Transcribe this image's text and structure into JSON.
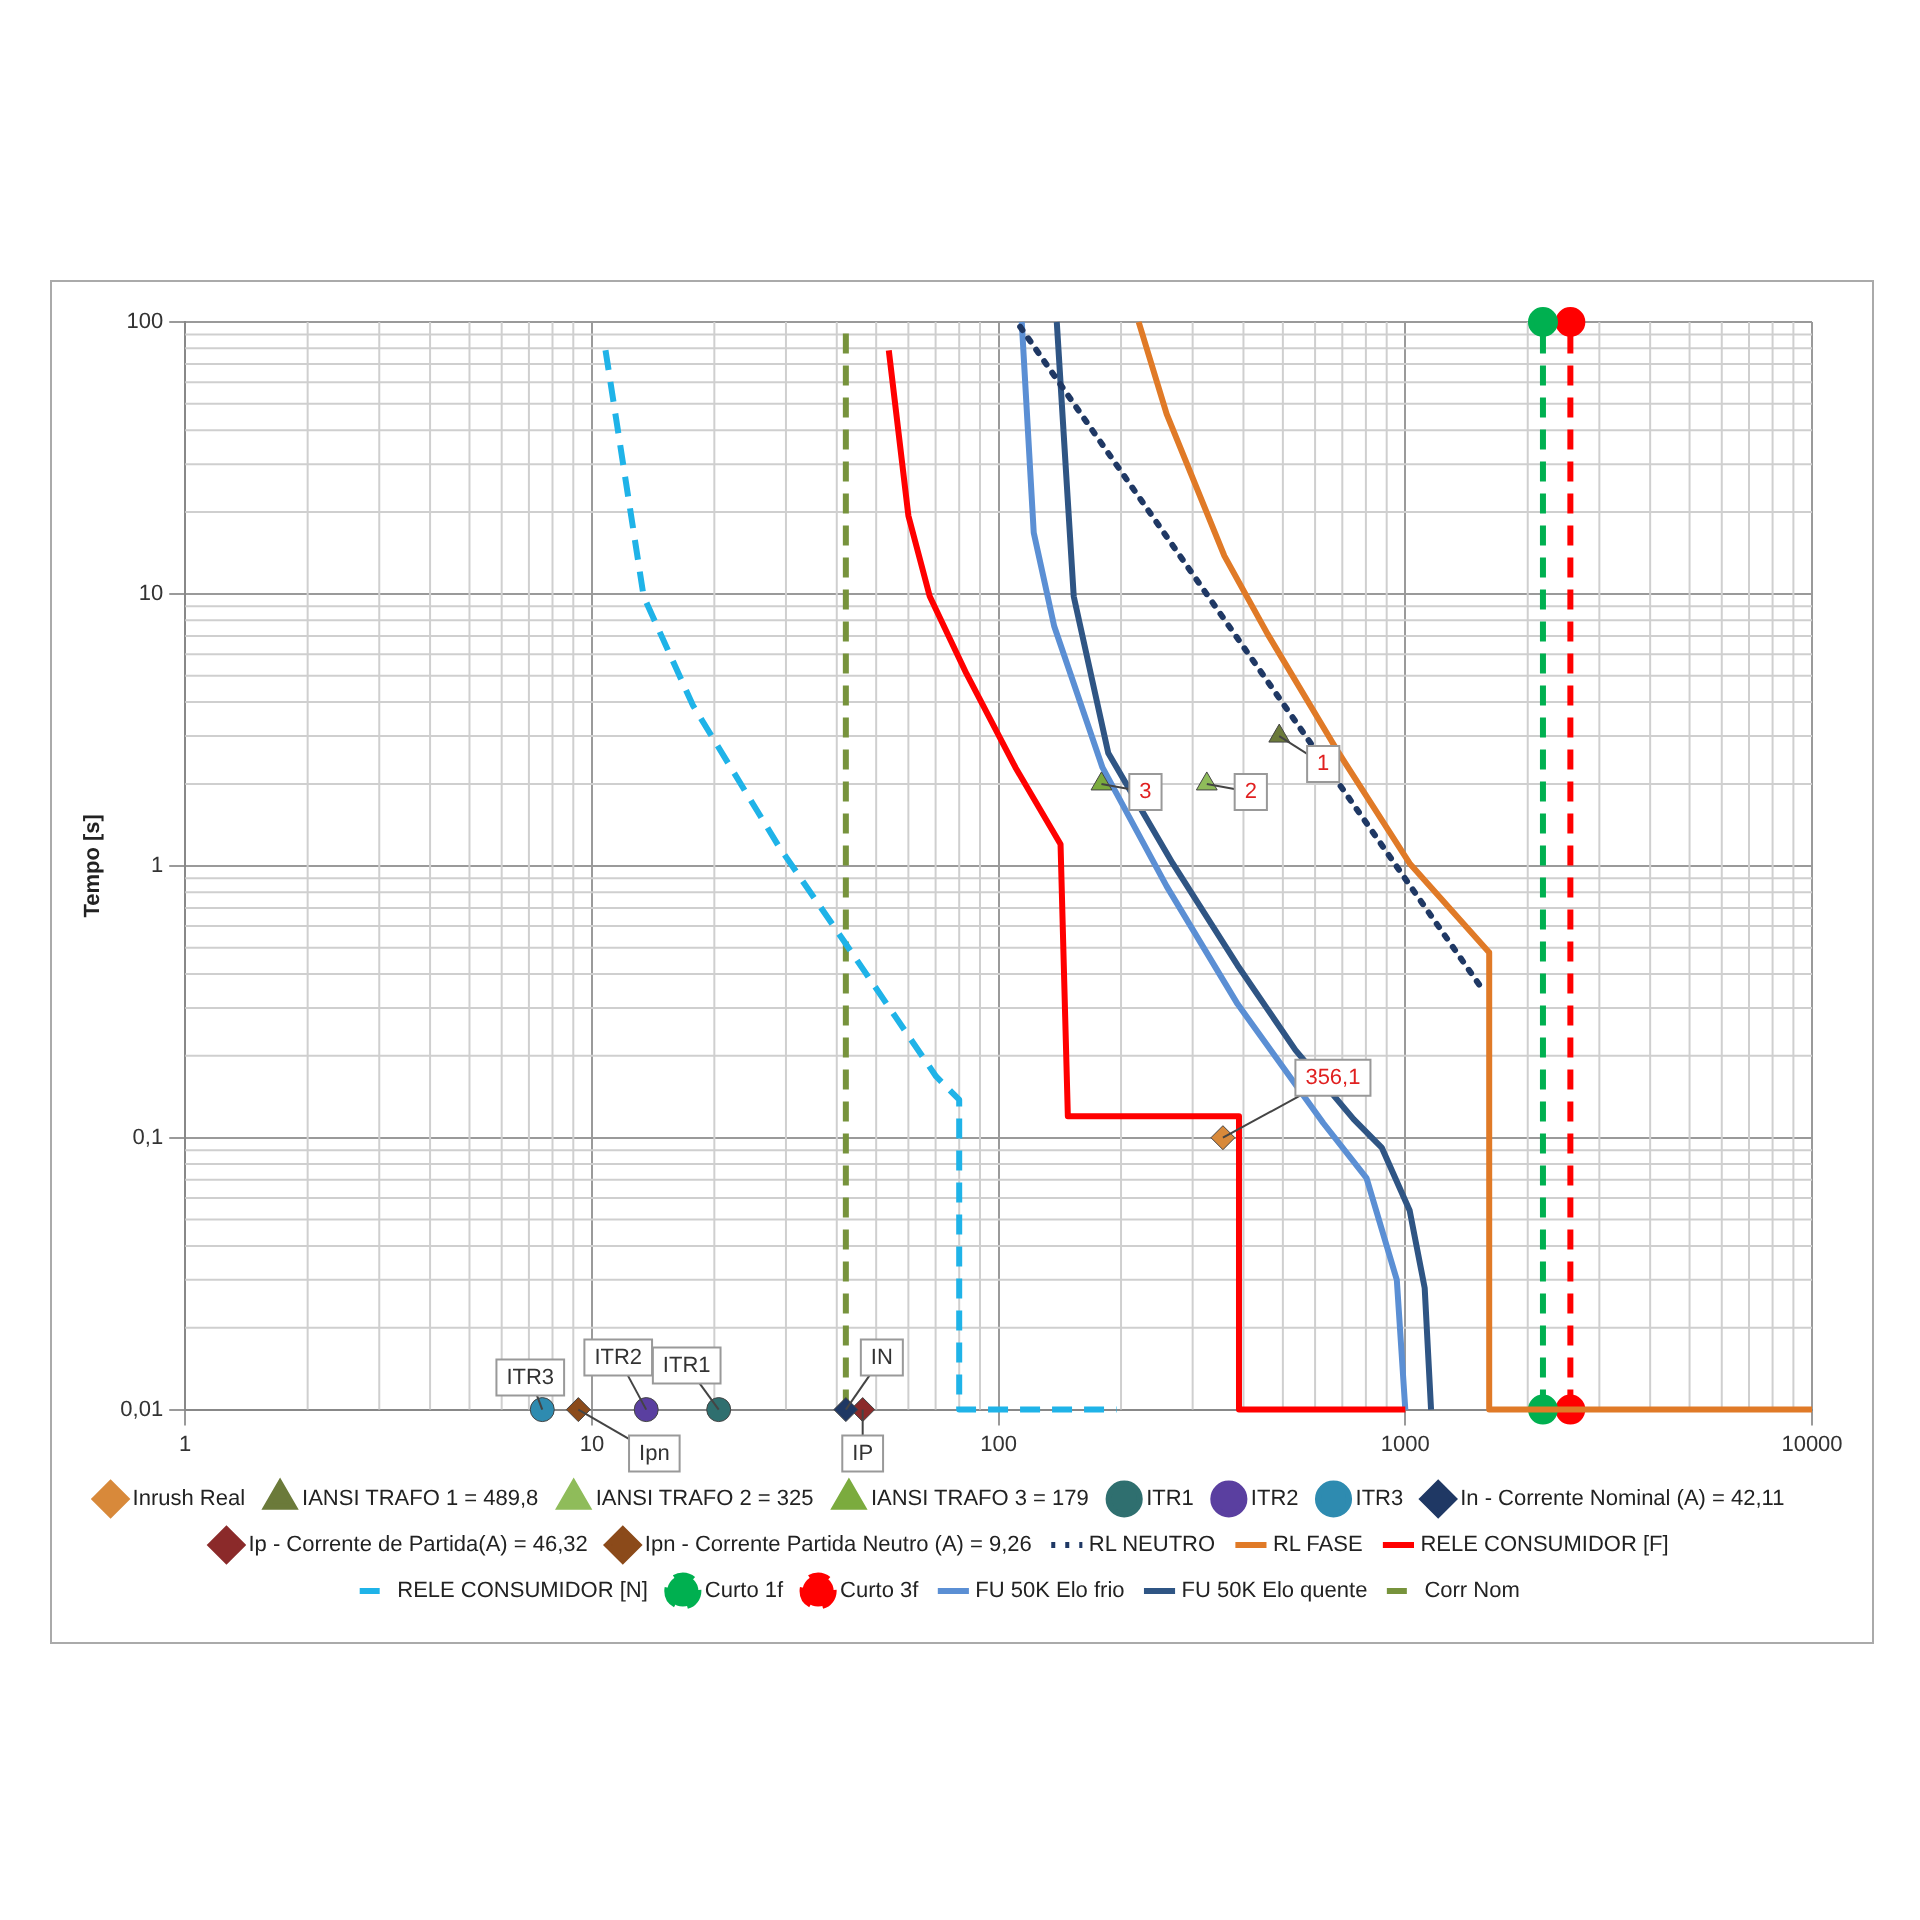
{
  "chart_data": {
    "type": "line",
    "ylabel": "Tempo [s]",
    "log": "xy",
    "grid": true,
    "legend": "bottom",
    "xlim": [
      1,
      10000
    ],
    "xticks": [
      1,
      10,
      100,
      1000,
      10000
    ],
    "ylim": [
      0.01,
      100
    ],
    "yticks": [
      {
        "value": 0.01,
        "label": "0,01"
      },
      {
        "value": 0.1,
        "label": "0,1"
      },
      1,
      10,
      100
    ],
    "series": [
      {
        "name": "RL NEUTRO",
        "type": "line",
        "color": "#1f3864",
        "line_style": "dotted",
        "marker": "none",
        "x": [
          113,
          1550
        ],
        "values": [
          96,
          0.35
        ]
      },
      {
        "name": "RL FASE",
        "type": "line",
        "color": "#e07a27",
        "line_style": "solid",
        "marker": "none",
        "x": [
          221,
          259,
          359,
          459,
          686,
          1025,
          1608,
          1608,
          10000
        ],
        "values": [
          100,
          45.8,
          13.8,
          7.1,
          2.6,
          1.02,
          0.48,
          0.01,
          0.01
        ]
      },
      {
        "name": "RELE CONSUMIDOR [F]",
        "type": "line",
        "color": "#ff0000",
        "line_style": "solid",
        "marker": "none",
        "x": [
          53.7,
          60,
          67.7,
          83.3,
          110,
          142,
          148,
          390,
          390,
          1000
        ],
        "values": [
          78.7,
          19.4,
          9.8,
          5.1,
          2.3,
          1.2,
          0.12,
          0.12,
          0.01,
          0.01
        ]
      },
      {
        "name": "RELE CONSUMIDOR [N]",
        "type": "line",
        "color": "#1fb3e8",
        "line_style": "dashed",
        "marker": "none",
        "x": [
          10.8,
          13.4,
          17.7,
          28.9,
          41.6,
          70.2,
          80,
          80,
          195
        ],
        "values": [
          78.7,
          9.8,
          3.9,
          1.17,
          0.53,
          0.168,
          0.138,
          0.01,
          0.01
        ]
      },
      {
        "name": "Curto 1f",
        "type": "line",
        "color": "#00b050",
        "line_style": "dashed",
        "marker": "circle",
        "x": [
          2180,
          2180
        ],
        "values": [
          0.01,
          100
        ]
      },
      {
        "name": "Curto 3f",
        "type": "line",
        "color": "#ff0000",
        "line_style": "dashed",
        "marker": "circle",
        "x": [
          2546,
          2546
        ],
        "values": [
          0.01,
          100
        ]
      },
      {
        "name": "FU 50K Elo frio",
        "type": "line",
        "color": "#5b8fd4",
        "line_style": "solid",
        "marker": "none",
        "x": [
          114,
          122,
          137,
          180,
          259,
          387,
          629,
          803,
          953,
          1000
        ],
        "values": [
          100,
          16.8,
          7.6,
          2.3,
          0.84,
          0.31,
          0.113,
          0.071,
          0.03,
          0.01
        ]
      },
      {
        "name": "FU 50K Elo quente",
        "type": "line",
        "color": "#2f5584",
        "line_style": "solid",
        "marker": "none",
        "x": [
          139,
          153,
          186,
          268,
          387,
          537,
          746,
          875,
          1025,
          1116,
          1157
        ],
        "values": [
          100,
          9.8,
          2.6,
          1.02,
          0.43,
          0.21,
          0.117,
          0.092,
          0.054,
          0.028,
          0.01
        ]
      },
      {
        "name": "Corr Nom",
        "type": "line",
        "color": "#77933c",
        "line_style": "dashed",
        "marker": "none",
        "x": [
          42.11,
          42.11
        ],
        "values": [
          0.01,
          100
        ]
      },
      {
        "name": "Inrush Real",
        "type": "scatter",
        "color": "#d8893a",
        "marker": "diamond",
        "x": [
          356.1
        ],
        "values": [
          0.1
        ]
      },
      {
        "name": "IANSI TRAFO 1 = 489,8",
        "type": "scatter",
        "color": "#6b7a3a",
        "marker": "triangle",
        "x": [
          489.8
        ],
        "values": [
          3
        ]
      },
      {
        "name": "IANSI TRAFO 2 = 325",
        "type": "scatter",
        "color": "#8fbc5a",
        "marker": "triangle",
        "x": [
          325
        ],
        "values": [
          2
        ]
      },
      {
        "name": "IANSI TRAFO 3 = 179",
        "type": "scatter",
        "color": "#7bab3e",
        "marker": "triangle",
        "x": [
          179
        ],
        "values": [
          2
        ]
      },
      {
        "name": "ITR1",
        "type": "scatter",
        "color": "#2f6f6f",
        "marker": "circle",
        "x": [
          20.5
        ],
        "values": [
          0.01
        ]
      },
      {
        "name": "ITR2",
        "type": "scatter",
        "color": "#5a3fa0",
        "marker": "circle",
        "x": [
          13.6
        ],
        "values": [
          0.01
        ]
      },
      {
        "name": "ITR3",
        "type": "scatter",
        "color": "#2e8bb0",
        "marker": "circle",
        "x": [
          7.55
        ],
        "values": [
          0.01
        ]
      },
      {
        "name": "In - Corrente Nominal (A) = 42,11",
        "type": "scatter",
        "color": "#1f3864",
        "marker": "diamond",
        "x": [
          42.11
        ],
        "values": [
          0.01
        ]
      },
      {
        "name": "Ip - Corrente de Partida(A) = 46,32",
        "type": "scatter",
        "color": "#8b2a2a",
        "marker": "diamond",
        "x": [
          46.32
        ],
        "values": [
          0.01
        ]
      },
      {
        "name": "Ipn - Corrente Partida Neutro (A) = 9,26",
        "type": "scatter",
        "color": "#8b4a1a",
        "marker": "diamond",
        "x": [
          9.26
        ],
        "values": [
          0.01
        ]
      }
    ],
    "annotations": [
      {
        "text": "356,1",
        "x": 356.1,
        "y": 0.1
      },
      {
        "text": "1",
        "x": 489.8,
        "y": 3
      },
      {
        "text": "2",
        "x": 325,
        "y": 2
      },
      {
        "text": "3",
        "x": 179,
        "y": 2
      },
      {
        "text": "ITR3",
        "x": 7.55,
        "y": 0.01
      },
      {
        "text": "ITR2",
        "x": 13.6,
        "y": 0.01
      },
      {
        "text": "ITR1",
        "x": 20.5,
        "y": 0.01
      },
      {
        "text": "IN",
        "x": 42.11,
        "y": 0.01
      },
      {
        "text": "IP",
        "x": 46.32,
        "y": 0.01
      },
      {
        "text": "Ipn",
        "x": 9.26,
        "y": 0.01
      }
    ]
  }
}
